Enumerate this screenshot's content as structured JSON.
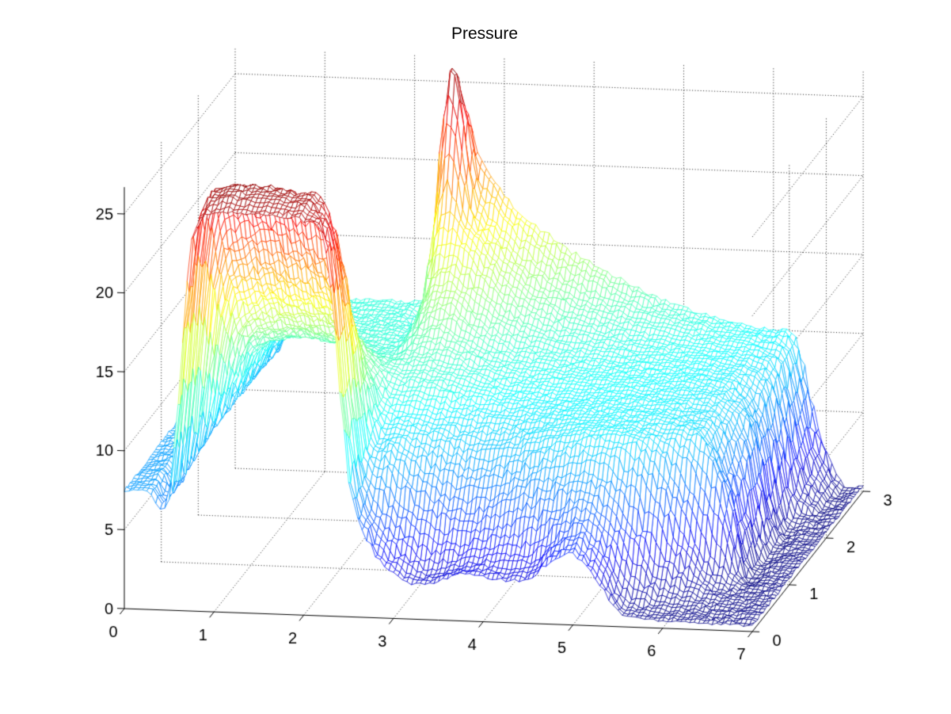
{
  "title": "Pressure",
  "style": {
    "background": "#ffffff",
    "axis_color": "#000000",
    "grid_color": "#1a1a1a",
    "title_color": "#000000",
    "tick_font_px": 20
  },
  "chart_data": {
    "type": "surface",
    "title": "Pressure",
    "colormap": "jet",
    "mesh_style": "wireframe-hidden-removal",
    "legend": "none",
    "grid": "dotted walls and floor",
    "view": "matlab default 3d (az -37.5, el 30)",
    "x": {
      "label": "",
      "min": 0,
      "max": 7,
      "ticks": [
        0,
        1,
        2,
        3,
        4,
        5,
        6,
        7
      ],
      "step": 0.25
    },
    "y": {
      "label": "",
      "min": 0,
      "max": 3,
      "ticks": [
        0,
        1,
        2,
        3
      ],
      "step": 0.25
    },
    "z": {
      "label": "",
      "min": 0,
      "max": 26.7,
      "ticks": [
        0,
        5,
        10,
        15,
        20,
        25
      ]
    },
    "color_range": [
      0.3,
      26.4
    ],
    "z_values": [
      [
        7.5,
        7.5,
        7.6,
        23,
        25.2,
        25.3,
        25.3,
        25.2,
        25,
        23,
        9,
        4.5,
        2.8,
        2.2,
        2.5,
        3,
        2.8,
        2.7,
        2.8,
        4,
        4.5,
        3,
        1,
        0.6,
        0.5,
        0.5,
        0.4,
        0.4,
        0.4
      ],
      [
        7.5,
        7.6,
        7.8,
        23.5,
        25.8,
        25.8,
        25.7,
        25.5,
        25.2,
        22,
        9,
        5.5,
        4,
        3,
        3,
        3.2,
        3.5,
        3.5,
        3.8,
        5,
        5.5,
        4,
        1.5,
        0.8,
        0.6,
        0.5,
        0.4,
        0.4,
        0.4
      ],
      [
        7.5,
        7.6,
        7.9,
        23,
        25.2,
        25.4,
        25.3,
        25,
        24.5,
        20,
        9.5,
        8.5,
        7,
        6,
        5.5,
        5.5,
        6,
        6.5,
        7,
        7.5,
        7.5,
        6.5,
        4.5,
        2.5,
        1.5,
        0.8,
        0.5,
        0.4,
        0.4
      ],
      [
        7.5,
        7.7,
        8,
        19.5,
        21.5,
        21.8,
        21.5,
        21,
        20,
        16,
        10,
        9.5,
        9,
        8.5,
        8,
        8,
        8.3,
        8.8,
        9.2,
        9.5,
        9.6,
        9.4,
        8.8,
        7,
        4,
        1.5,
        0.5,
        0.4,
        0.4
      ],
      [
        7.6,
        7.7,
        8,
        16.5,
        18,
        18.3,
        18,
        17.5,
        16.5,
        13.5,
        10.5,
        10,
        9.8,
        9.5,
        9.3,
        9.2,
        9.3,
        9.5,
        9.7,
        9.8,
        9.8,
        9.7,
        9.5,
        9.2,
        8.5,
        6,
        0.5,
        0.4,
        0.4
      ],
      [
        7.6,
        7.7,
        8,
        14,
        15.5,
        15.7,
        15.5,
        15.2,
        14.5,
        12.5,
        11,
        11,
        10.7,
        10.3,
        10,
        9.8,
        9.8,
        9.8,
        9.9,
        9.9,
        9.9,
        9.8,
        9.7,
        9.4,
        8.8,
        5.5,
        0.5,
        0.4,
        0.4
      ],
      [
        7.6,
        7.8,
        8,
        12.5,
        13.5,
        13.7,
        13.5,
        13.2,
        12.8,
        11.8,
        11.5,
        11.5,
        11.2,
        10.8,
        10.4,
        10.2,
        10.1,
        10,
        10,
        10,
        10,
        9.9,
        9.8,
        9.5,
        9,
        6.5,
        0.6,
        0.4,
        0.4
      ],
      [
        7.6,
        7.8,
        8,
        11.5,
        12.2,
        12.4,
        12.2,
        12,
        11.6,
        11.3,
        12,
        12.2,
        11.8,
        11.2,
        10.8,
        10.5,
        10.4,
        10.3,
        10.2,
        10.2,
        10.1,
        10,
        9.9,
        9.7,
        9.2,
        7.5,
        1,
        0.4,
        0.4
      ],
      [
        7.6,
        7.8,
        8,
        11,
        11.5,
        11.7,
        11.6,
        11.4,
        11.2,
        11.2,
        13,
        13.5,
        12.5,
        11.8,
        11.2,
        10.9,
        10.7,
        10.5,
        10.4,
        10.3,
        10.2,
        10.1,
        10,
        9.8,
        9.3,
        7,
        0.8,
        0.4,
        0.4
      ],
      [
        7.5,
        7.8,
        8,
        10.8,
        11.2,
        11.4,
        11.3,
        11.2,
        11.1,
        11.3,
        14.5,
        15,
        13.8,
        12.8,
        12,
        11.5,
        11.1,
        10.9,
        10.7,
        10.5,
        10.4,
        10.2,
        10.1,
        9.9,
        9.5,
        8,
        1.5,
        0.4,
        0.4
      ],
      [
        7.5,
        7.7,
        8,
        10.5,
        11,
        11.2,
        11.1,
        11,
        11,
        11.5,
        18,
        17,
        15.5,
        14,
        13,
        12.3,
        11.8,
        11.4,
        11.1,
        10.8,
        10.6,
        10.4,
        10.2,
        10,
        9.7,
        8.5,
        2.5,
        0.4,
        0.4
      ],
      [
        7.5,
        7.7,
        7.9,
        10.5,
        11,
        11,
        11,
        11,
        11,
        12,
        26.3,
        18.5,
        16.5,
        15,
        14,
        13.2,
        12.6,
        12.1,
        11.7,
        11.3,
        11,
        10.7,
        10.4,
        10.2,
        9.9,
        9,
        3,
        0.5,
        0.4
      ],
      [
        7.5,
        7.6,
        7.8,
        10.5,
        11,
        11,
        11,
        11,
        11,
        12.5,
        23,
        20,
        18,
        16.5,
        15.5,
        14.5,
        13.8,
        13,
        12.3,
        11.7,
        11.2,
        10.8,
        10.5,
        10.2,
        10,
        9.5,
        4,
        0.5,
        0.4
      ]
    ]
  }
}
